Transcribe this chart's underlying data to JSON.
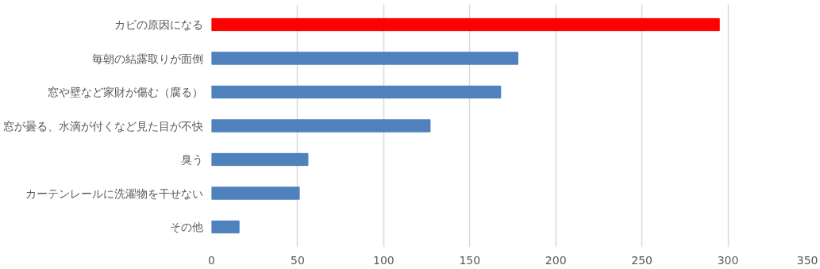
{
  "chart_data": {
    "type": "bar",
    "orientation": "horizontal",
    "categories": [
      "カビの原因になる",
      "毎朝の結露取りが面倒",
      "窓や壁など家財が傷む（腐る）",
      "窓が曇る、水滴が付くなど見た目が不快",
      "臭う",
      "カーテンレールに洗濯物を干せない",
      "その他"
    ],
    "values": [
      295,
      178,
      168,
      127,
      56,
      51,
      16
    ],
    "colors": [
      "#ff0000",
      "#4f81bd",
      "#4f81bd",
      "#4f81bd",
      "#4f81bd",
      "#4f81bd",
      "#4f81bd"
    ],
    "xlim": [
      0,
      350
    ],
    "xticks": [
      0,
      50,
      100,
      150,
      200,
      250,
      300,
      350
    ],
    "grid": "x"
  }
}
